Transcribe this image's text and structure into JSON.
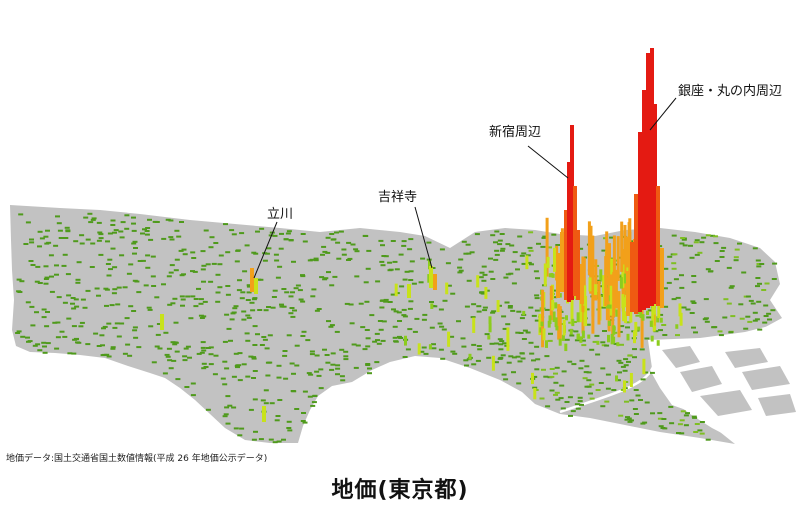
{
  "title": "地価(東京都)",
  "source": "地価データ:国土交通省国土数値情報(平成 26 年地価公示データ)",
  "annotations": [
    {
      "id": "ginza",
      "text": "銀座・丸の内周辺"
    },
    {
      "id": "shinjuku",
      "text": "新宿周辺"
    },
    {
      "id": "kichijoji",
      "text": "吉祥寺"
    },
    {
      "id": "tachikawa",
      "text": "立川"
    }
  ],
  "colors": {
    "land": "#c2c2c2",
    "water": "#ffffff",
    "low": "#4f9a1c",
    "mid": "#c8e21a",
    "high": "#f2a01a",
    "peak": "#e41a12",
    "leader": "#111111"
  },
  "legend": "none"
}
